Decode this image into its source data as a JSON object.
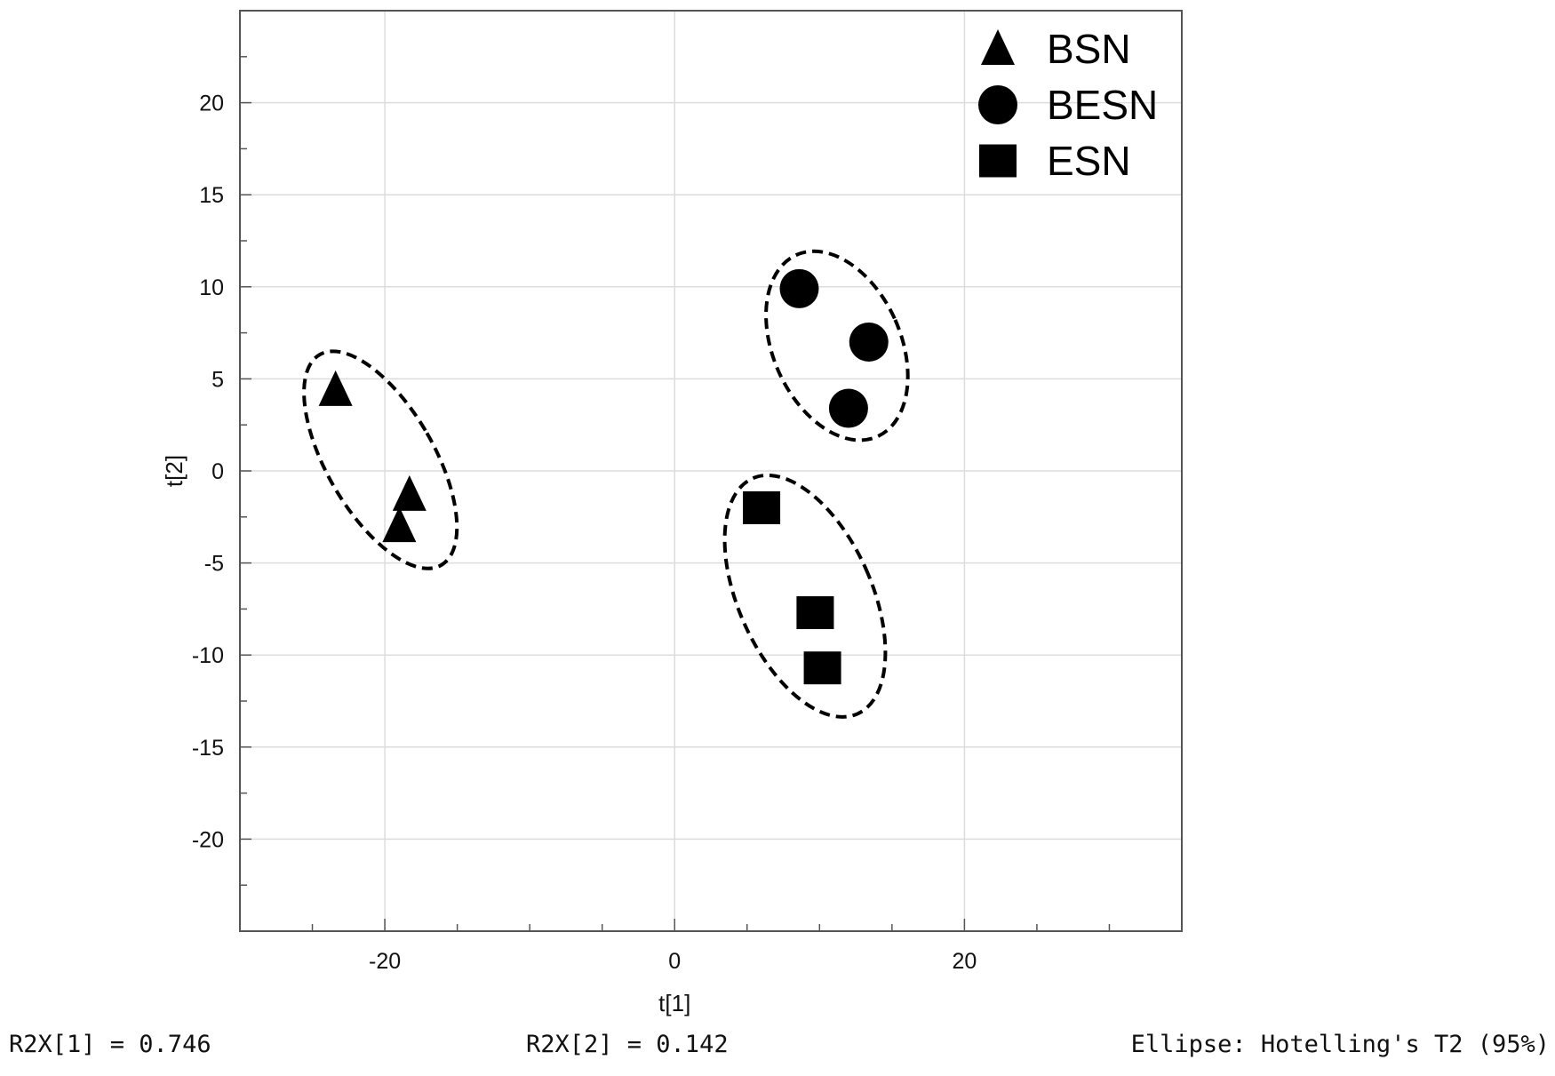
{
  "chart_data": {
    "type": "scatter",
    "title": "",
    "xlabel": "t[1]",
    "ylabel": "t[2]",
    "xlim": [
      -30,
      35
    ],
    "ylim": [
      -25,
      25
    ],
    "xticks": [
      -20,
      0,
      20
    ],
    "yticks": [
      -20,
      -15,
      -10,
      -5,
      0,
      5,
      10,
      15,
      20
    ],
    "grid": true,
    "legend_position": "top-right",
    "series": [
      {
        "name": "BSN",
        "marker": "triangle",
        "points": [
          [
            -23.4,
            4.4
          ],
          [
            -18.3,
            -1.3
          ],
          [
            -19.0,
            -3.0
          ]
        ]
      },
      {
        "name": "BESN",
        "marker": "circle",
        "points": [
          [
            8.6,
            9.9
          ],
          [
            13.4,
            7.0
          ],
          [
            12.0,
            3.4
          ]
        ]
      },
      {
        "name": "ESN",
        "marker": "square",
        "points": [
          [
            6.0,
            -2.0
          ],
          [
            9.7,
            -7.7
          ],
          [
            10.2,
            -10.7
          ]
        ]
      }
    ],
    "ellipses": [
      {
        "group": "BSN",
        "center": [
          -20.3,
          0.6
        ],
        "semi_axes": [
          3.7,
          6.6
        ],
        "rotation_deg": 30
      },
      {
        "group": "BESN",
        "center": [
          11.2,
          6.8
        ],
        "semi_axes": [
          4.4,
          5.4
        ],
        "rotation_deg": 24
      },
      {
        "group": "ESN",
        "center": [
          9.0,
          -6.8
        ],
        "semi_axes": [
          4.6,
          7.0
        ],
        "rotation_deg": 24
      }
    ],
    "colors": {
      "markers": "#000000",
      "grid": "#dcdcdc",
      "frame": "#555555"
    }
  },
  "footer": {
    "r2x1": "R2X[1] = 0.746",
    "r2x2": "R2X[2] = 0.142",
    "ellipse_note": "Ellipse: Hotelling's T2 (95%)"
  }
}
